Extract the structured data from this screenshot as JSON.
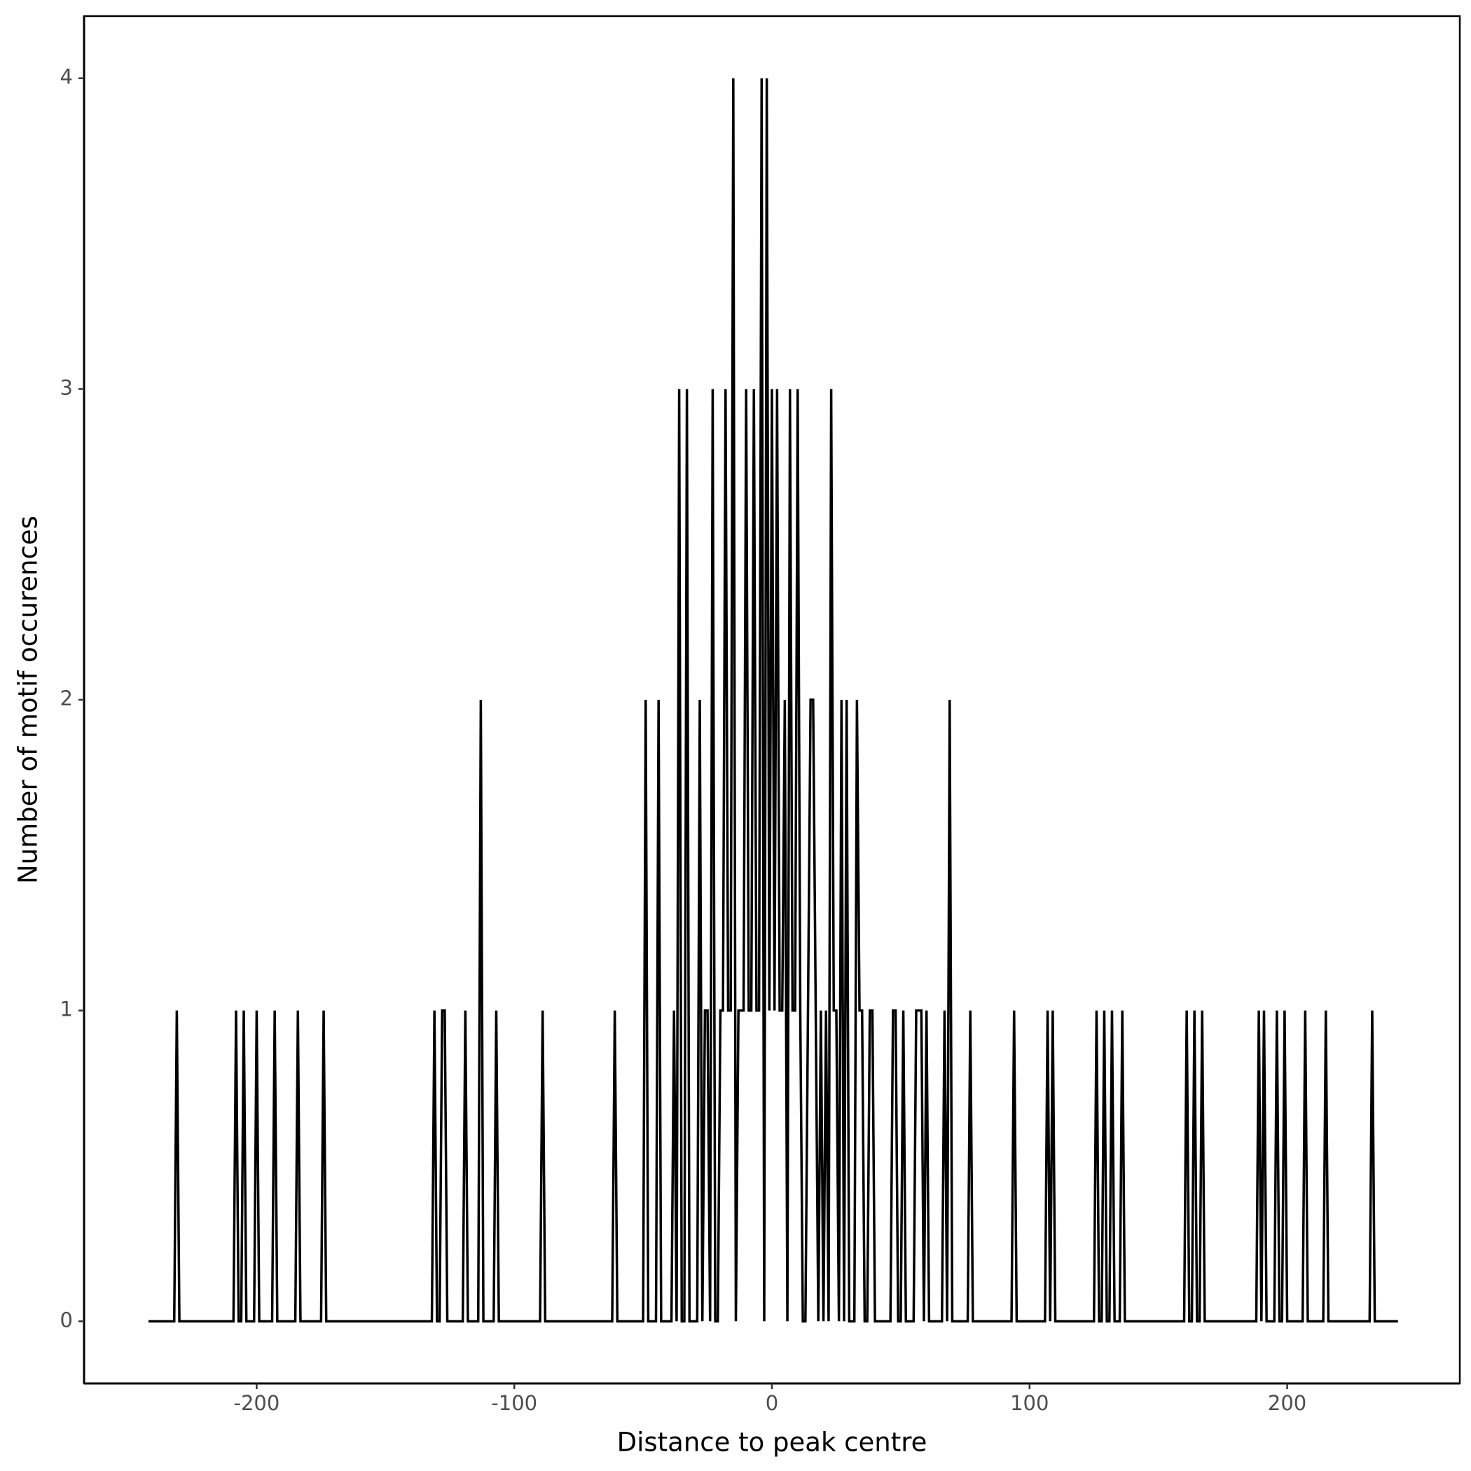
{
  "chart_data": {
    "type": "line",
    "x_label": "Distance to peak centre",
    "y_label": "Number of motif occurences",
    "x": [
      -242,
      -232,
      -231,
      -230,
      -209,
      -208,
      -207,
      -206,
      -205,
      -204,
      -201,
      -200,
      -199,
      -194,
      -193,
      -192,
      -185,
      -184,
      -183,
      -175,
      -174,
      -173,
      -132,
      -131,
      -130,
      -129,
      -128,
      -127,
      -126,
      -120,
      -119,
      -118,
      -114,
      -113,
      -112,
      -108,
      -107,
      -106,
      -90,
      -89,
      -88,
      -62,
      -61,
      -60,
      -50,
      -49,
      -48,
      -45,
      -44,
      -43,
      -40,
      -39,
      -38,
      -37,
      -36,
      -35,
      -34,
      -33,
      -32,
      -31,
      -30,
      -29,
      -28,
      -27,
      -26,
      -25,
      -24,
      -23,
      -22,
      -21,
      -20,
      -19,
      -18,
      -17,
      -16,
      -15,
      -14,
      -13,
      -12,
      -11,
      -10,
      -9,
      -8,
      -7,
      -6,
      -5,
      -4,
      -3,
      -2,
      -1,
      0,
      1,
      2,
      3,
      4,
      5,
      6,
      7,
      8,
      9,
      10,
      11,
      12,
      13,
      14,
      15,
      16,
      17,
      18,
      19,
      20,
      21,
      22,
      23,
      24,
      25,
      26,
      27,
      28,
      29,
      30,
      31,
      32,
      33,
      34,
      35,
      36,
      37,
      38,
      39,
      40,
      46,
      47,
      48,
      49,
      50,
      51,
      52,
      55,
      56,
      57,
      58,
      59,
      60,
      61,
      66,
      67,
      68,
      69,
      70,
      76,
      77,
      78,
      93,
      94,
      95,
      106,
      107,
      108,
      109,
      110,
      125,
      126,
      127,
      128,
      129,
      130,
      131,
      132,
      133,
      135,
      136,
      137,
      160,
      161,
      162,
      163,
      164,
      165,
      166,
      167,
      168,
      188,
      189,
      190,
      191,
      192,
      195,
      196,
      197,
      198,
      199,
      200,
      206,
      207,
      208,
      214,
      215,
      216,
      232,
      233,
      234,
      243
    ],
    "series": [
      {
        "color": "#000000",
        "values": [
          0,
          0,
          1,
          0,
          0,
          1,
          0,
          0,
          1,
          0,
          0,
          1,
          0,
          0,
          1,
          0,
          0,
          1,
          0,
          0,
          1,
          0,
          0,
          1,
          0,
          0,
          1,
          1,
          0,
          0,
          1,
          0,
          0,
          2,
          0,
          0,
          1,
          0,
          0,
          1,
          0,
          0,
          1,
          0,
          0,
          2,
          0,
          0,
          2,
          0,
          0,
          0,
          1,
          0,
          3,
          0,
          0,
          3,
          0,
          0,
          0,
          0,
          2,
          0,
          1,
          1,
          0,
          3,
          0,
          0,
          1,
          1,
          3,
          1,
          1,
          4,
          0,
          1,
          1,
          1,
          3,
          1,
          1,
          3,
          1,
          1,
          4,
          0,
          4,
          1,
          3,
          1,
          3,
          1,
          1,
          2,
          0,
          3,
          1,
          1,
          3,
          1,
          0,
          0,
          1,
          2,
          2,
          1,
          0,
          1,
          0,
          1,
          0,
          3,
          1,
          1,
          0,
          2,
          0,
          2,
          0,
          0,
          0,
          2,
          1,
          1,
          0,
          0,
          1,
          1,
          0,
          0,
          1,
          1,
          0,
          0,
          1,
          0,
          0,
          1,
          1,
          1,
          0,
          1,
          0,
          0,
          1,
          0,
          2,
          0,
          0,
          1,
          0,
          0,
          1,
          0,
          0,
          1,
          0,
          1,
          0,
          0,
          1,
          0,
          0,
          1,
          0,
          0,
          1,
          0,
          0,
          1,
          0,
          0,
          1,
          0,
          0,
          1,
          0,
          0,
          1,
          0,
          0,
          1,
          0,
          1,
          0,
          0,
          1,
          0,
          0,
          1,
          0,
          0,
          1,
          0,
          0,
          1,
          0,
          0,
          1,
          0,
          0
        ]
      }
    ],
    "xlim": [
      -267,
      267
    ],
    "xticks": [
      -200,
      -100,
      0,
      100,
      200
    ],
    "ylim": [
      -0.2,
      4.2
    ],
    "yticks": [
      0,
      1,
      2,
      3,
      4
    ],
    "grid": false
  }
}
